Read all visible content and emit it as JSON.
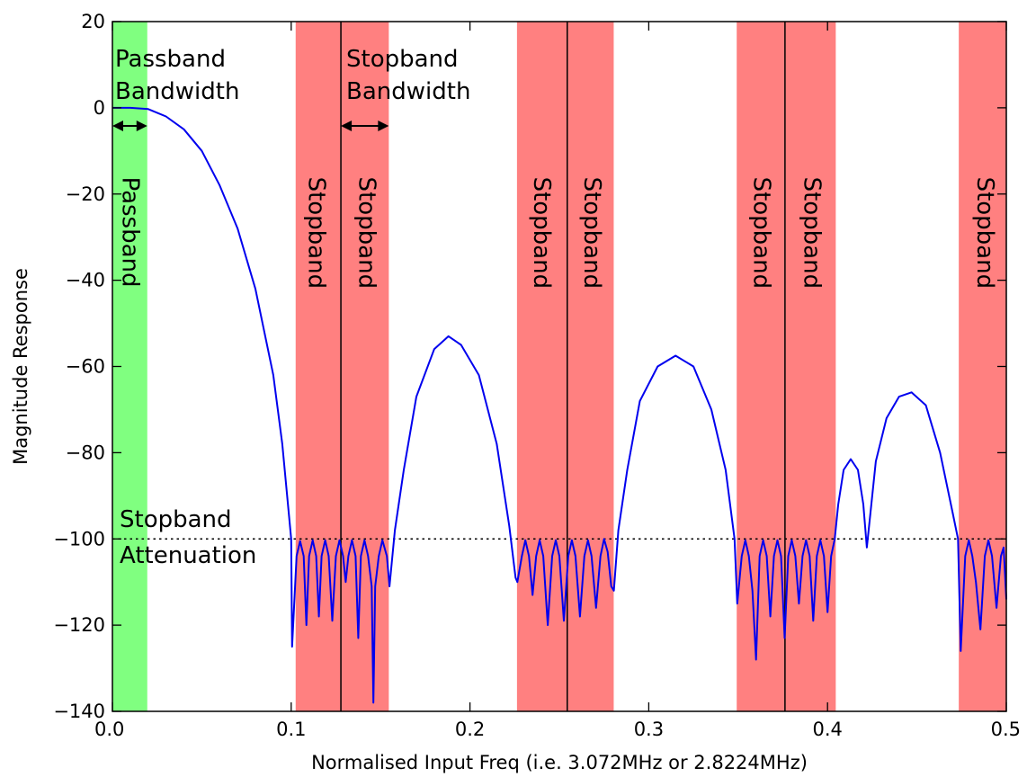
{
  "chart_data": {
    "type": "line",
    "title": "",
    "xlabel": "Normalised Input Freq (i.e. 3.072MHz or 2.8224MHz)",
    "ylabel": "Magnitude Response",
    "xlim": [
      0.0,
      0.5
    ],
    "ylim": [
      -140,
      20
    ],
    "x_ticks": [
      0.0,
      0.1,
      0.2,
      0.3,
      0.4,
      0.5
    ],
    "x_tick_labels": [
      "0.0",
      "0.1",
      "0.2",
      "0.3",
      "0.4",
      "0.5"
    ],
    "y_ticks": [
      20,
      0,
      -20,
      -40,
      -60,
      -80,
      -100,
      -120,
      -140
    ],
    "y_tick_labels": [
      "20",
      "0",
      "−20",
      "−40",
      "−60",
      "−80",
      "−100",
      "−120",
      "−140"
    ],
    "grid": false,
    "colors": {
      "response": "#0000ee",
      "stopband_fill": "#ff8080",
      "passband_fill": "#80ff80",
      "marker_lines": "#000000",
      "attenuation_line": "#000000"
    },
    "passband": {
      "from": 0.0,
      "to": 0.0195,
      "label": "Passband"
    },
    "stopbands": [
      {
        "from": 0.1025,
        "to": 0.1546,
        "label": "Stopband"
      },
      {
        "from": 0.1025,
        "to": 0.1546,
        "label": "Stopband"
      },
      {
        "from": 0.2263,
        "to": 0.2804,
        "label": "Stopband"
      },
      {
        "from": 0.2263,
        "to": 0.2804,
        "label": "Stopband"
      },
      {
        "from": 0.3492,
        "to": 0.4046,
        "label": "Stopband"
      },
      {
        "from": 0.3492,
        "to": 0.4046,
        "label": "Stopband"
      },
      {
        "from": 0.4734,
        "to": 0.5,
        "label": "Stopband"
      }
    ],
    "band_fills": [
      {
        "from": 0.0,
        "to": 0.0195,
        "kind": "passband"
      },
      {
        "from": 0.1025,
        "to": 0.1546,
        "kind": "stopband"
      },
      {
        "from": 0.2263,
        "to": 0.2804,
        "kind": "stopband"
      },
      {
        "from": 0.3492,
        "to": 0.4046,
        "kind": "stopband"
      },
      {
        "from": 0.4734,
        "to": 0.5,
        "kind": "stopband"
      }
    ],
    "stopband_label_x": [
      0.114,
      0.142,
      0.24,
      0.268,
      0.363,
      0.391,
      0.488
    ],
    "center_lines": [
      0.1278,
      0.2544,
      0.3762
    ],
    "stopband_attenuation": -100,
    "annotations": {
      "passband_bandwidth": [
        "Passband",
        "Bandwidth"
      ],
      "stopband_bandwidth": [
        "Stopband",
        "Bandwidth"
      ],
      "stopband_attenuation": [
        "Stopband",
        "Attenuation"
      ]
    },
    "series": [
      {
        "points": [
          [
            0.0,
            0.0
          ],
          [
            0.01,
            0.0
          ],
          [
            0.02,
            -0.3
          ],
          [
            0.03,
            -2
          ],
          [
            0.04,
            -5
          ],
          [
            0.05,
            -10
          ],
          [
            0.06,
            -18
          ],
          [
            0.07,
            -28
          ],
          [
            0.08,
            -42
          ],
          [
            0.09,
            -62
          ],
          [
            0.095,
            -78
          ],
          [
            0.1,
            -100
          ],
          [
            0.1005,
            -125
          ],
          [
            0.103,
            -104
          ],
          [
            0.105,
            -100.5
          ],
          [
            0.107,
            -104
          ],
          [
            0.1085,
            -120
          ],
          [
            0.11,
            -104
          ],
          [
            0.112,
            -100.3
          ],
          [
            0.114,
            -104
          ],
          [
            0.1155,
            -118
          ],
          [
            0.117,
            -104
          ],
          [
            0.119,
            -100.3
          ],
          [
            0.121,
            -104
          ],
          [
            0.123,
            -119
          ],
          [
            0.125,
            -104
          ],
          [
            0.127,
            -100.3
          ],
          [
            0.129,
            -104
          ],
          [
            0.1305,
            -110
          ],
          [
            0.132,
            -104
          ],
          [
            0.134,
            -100.3
          ],
          [
            0.136,
            -104
          ],
          [
            0.1375,
            -123
          ],
          [
            0.139,
            -104
          ],
          [
            0.141,
            -100.3
          ],
          [
            0.143,
            -104
          ],
          [
            0.145,
            -111
          ],
          [
            0.146,
            -138
          ],
          [
            0.147,
            -111
          ],
          [
            0.149,
            -104
          ],
          [
            0.151,
            -100.3
          ],
          [
            0.1535,
            -104
          ],
          [
            0.155,
            -111
          ],
          [
            0.158,
            -98
          ],
          [
            0.163,
            -84
          ],
          [
            0.17,
            -67
          ],
          [
            0.18,
            -56
          ],
          [
            0.188,
            -53
          ],
          [
            0.195,
            -55
          ],
          [
            0.205,
            -62
          ],
          [
            0.215,
            -78
          ],
          [
            0.222,
            -97
          ],
          [
            0.2255,
            -109
          ],
          [
            0.2265,
            -110
          ],
          [
            0.229,
            -104
          ],
          [
            0.231,
            -100.3
          ],
          [
            0.233,
            -104
          ],
          [
            0.235,
            -113
          ],
          [
            0.237,
            -104
          ],
          [
            0.239,
            -100.3
          ],
          [
            0.241,
            -104
          ],
          [
            0.2435,
            -120
          ],
          [
            0.246,
            -104
          ],
          [
            0.248,
            -100.3
          ],
          [
            0.25,
            -104
          ],
          [
            0.2525,
            -119
          ],
          [
            0.255,
            -104
          ],
          [
            0.257,
            -100.3
          ],
          [
            0.259,
            -104
          ],
          [
            0.2615,
            -118
          ],
          [
            0.264,
            -104
          ],
          [
            0.266,
            -100.3
          ],
          [
            0.268,
            -104
          ],
          [
            0.2705,
            -116
          ],
          [
            0.273,
            -104
          ],
          [
            0.275,
            -100
          ],
          [
            0.277,
            -103
          ],
          [
            0.279,
            -111
          ],
          [
            0.2805,
            -112
          ],
          [
            0.283,
            -98
          ],
          [
            0.288,
            -84
          ],
          [
            0.295,
            -68
          ],
          [
            0.305,
            -60
          ],
          [
            0.315,
            -57.5
          ],
          [
            0.325,
            -60
          ],
          [
            0.335,
            -70
          ],
          [
            0.343,
            -84
          ],
          [
            0.348,
            -100
          ],
          [
            0.3495,
            -115
          ],
          [
            0.352,
            -104
          ],
          [
            0.354,
            -100.3
          ],
          [
            0.356,
            -104
          ],
          [
            0.358,
            -112
          ],
          [
            0.36,
            -128
          ],
          [
            0.362,
            -104
          ],
          [
            0.364,
            -100.3
          ],
          [
            0.366,
            -104
          ],
          [
            0.368,
            -118
          ],
          [
            0.37,
            -104
          ],
          [
            0.372,
            -100.3
          ],
          [
            0.374,
            -104
          ],
          [
            0.376,
            -123
          ],
          [
            0.378,
            -104
          ],
          [
            0.38,
            -100.3
          ],
          [
            0.382,
            -104
          ],
          [
            0.384,
            -115
          ],
          [
            0.386,
            -104
          ],
          [
            0.388,
            -100.3
          ],
          [
            0.39,
            -104
          ],
          [
            0.392,
            -119
          ],
          [
            0.394,
            -104
          ],
          [
            0.396,
            -100.3
          ],
          [
            0.398,
            -104
          ],
          [
            0.4,
            -117
          ],
          [
            0.402,
            -104
          ],
          [
            0.404,
            -100
          ],
          [
            0.406,
            -92
          ],
          [
            0.409,
            -84
          ],
          [
            0.413,
            -81.5
          ],
          [
            0.417,
            -84
          ],
          [
            0.42,
            -92
          ],
          [
            0.422,
            -102
          ],
          [
            0.4235,
            -96
          ],
          [
            0.427,
            -82
          ],
          [
            0.433,
            -72
          ],
          [
            0.44,
            -67
          ],
          [
            0.447,
            -66
          ],
          [
            0.455,
            -69
          ],
          [
            0.463,
            -80
          ],
          [
            0.47,
            -94
          ],
          [
            0.473,
            -100
          ],
          [
            0.4745,
            -126
          ],
          [
            0.477,
            -104
          ],
          [
            0.479,
            -100.3
          ],
          [
            0.481,
            -104
          ],
          [
            0.483,
            -110
          ],
          [
            0.4855,
            -121
          ],
          [
            0.488,
            -104
          ],
          [
            0.49,
            -100.3
          ],
          [
            0.492,
            -104
          ],
          [
            0.4945,
            -116
          ],
          [
            0.497,
            -104
          ],
          [
            0.4985,
            -102
          ],
          [
            0.5,
            -114
          ]
        ]
      }
    ]
  }
}
